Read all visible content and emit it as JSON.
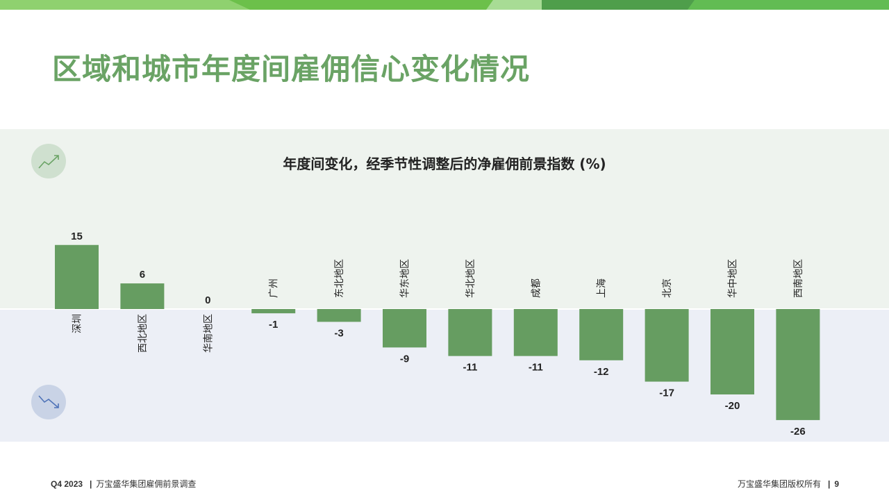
{
  "page": {
    "title": "区域和城市年度间雇佣信心变化情况",
    "footer_left_quarter": "Q4 2023",
    "footer_left_separator": "|",
    "footer_left_text": "万宝盛华集团雇佣前景调查",
    "footer_right_text": "万宝盛华集团版权所有",
    "footer_right_separator": "|",
    "page_number": "9"
  },
  "icons": {
    "top": "trending-up-icon",
    "bottom": "trending-down-icon"
  },
  "colors": {
    "bar": "#669d61",
    "title": "#6aa365",
    "positive_band": "#eef3ee",
    "negative_band": "#eceff6",
    "up_icon_bg": "#cfe0cf",
    "down_icon_bg": "#c9d3e6"
  },
  "chart_data": {
    "type": "bar",
    "title": "年度间变化，经季节性调整后的净雇佣前景指数 (%)",
    "categories": [
      "深圳",
      "西北地区",
      "华南地区",
      "广州",
      "东北地区",
      "华东地区",
      "华北地区",
      "成都",
      "上海",
      "北京",
      "华中地区",
      "西南地区"
    ],
    "values": [
      15,
      6,
      0,
      -1,
      -3,
      -9,
      -11,
      -11,
      -12,
      -17,
      -20,
      -26
    ],
    "xlabel": "",
    "ylabel": "",
    "grid": false
  }
}
